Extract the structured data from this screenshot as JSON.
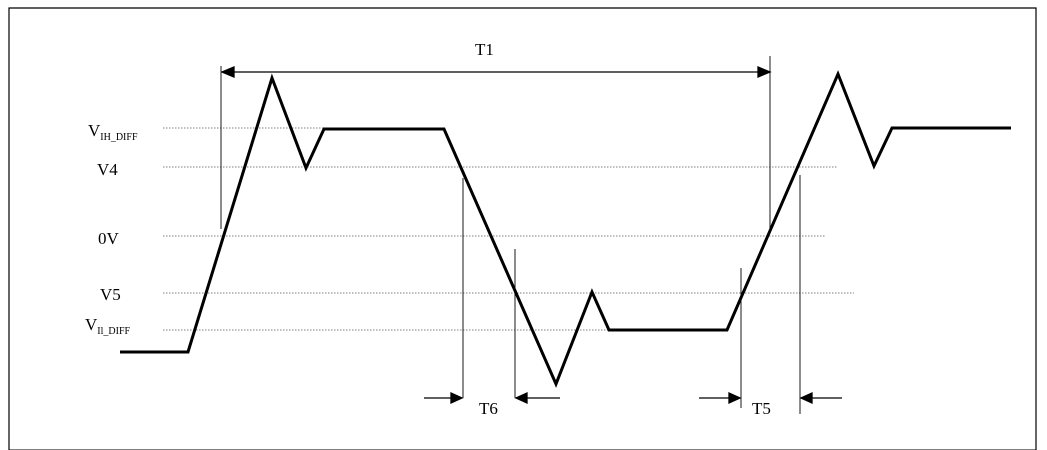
{
  "diagram": {
    "levels": {
      "vih_main": "V",
      "vih_sub": "IH_DIFF",
      "v4": "V4",
      "zero": "0V",
      "v5": "V5",
      "vil_main": "V",
      "vil_sub": "Il_DIFF"
    },
    "timings": {
      "t1": "T1",
      "t6": "T6",
      "t5": "T5"
    },
    "colors": {
      "line": "#000000",
      "guide": "#555555"
    }
  }
}
